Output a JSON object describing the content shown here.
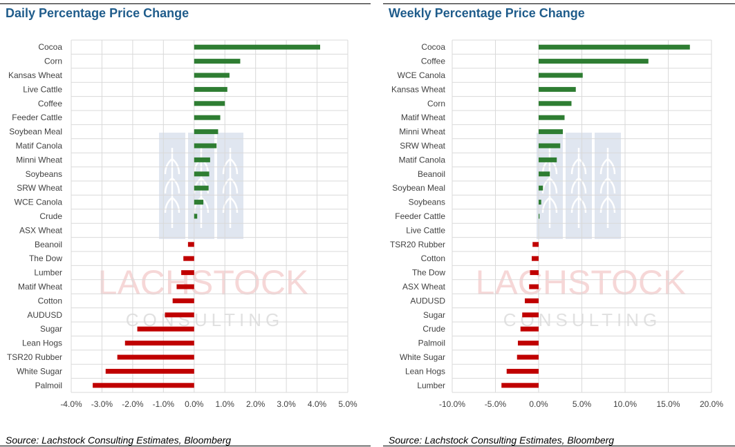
{
  "chart_data": [
    {
      "type": "bar",
      "orientation": "horizontal",
      "title": "Daily Percentage Price Change",
      "categories": [
        "Cocoa",
        "Corn",
        "Kansas Wheat",
        "Live Cattle",
        "Coffee",
        "Feeder Cattle",
        "Soybean Meal",
        "Matif Canola",
        "Minni Wheat",
        "Soybeans",
        "SRW Wheat",
        "WCE Canola",
        "Crude",
        "ASX Wheat",
        "Beanoil",
        "The Dow",
        "Lumber",
        "Matif Wheat",
        "Cotton",
        "AUDUSD",
        "Sugar",
        "Lean Hogs",
        "TSR20 Rubber",
        "White Sugar",
        "Palmoil"
      ],
      "values": [
        4.1,
        1.5,
        1.15,
        1.08,
        1.0,
        0.85,
        0.78,
        0.73,
        0.52,
        0.49,
        0.47,
        0.3,
        0.1,
        0.0,
        -0.2,
        -0.35,
        -0.42,
        -0.57,
        -0.7,
        -0.95,
        -1.85,
        -2.25,
        -2.5,
        -2.88,
        -3.3
      ],
      "xlim": [
        -4.0,
        5.0
      ],
      "xticks": [
        "-4.0%",
        "-3.0%",
        "-2.0%",
        "-1.0%",
        "0.0%",
        "1.0%",
        "2.0%",
        "3.0%",
        "4.0%",
        "5.0%"
      ],
      "grid": true,
      "colors": {
        "positive": "#2e7d32",
        "negative": "#c00000"
      },
      "source": "Source: Lachstock Consulting Estimates, Bloomberg"
    },
    {
      "type": "bar",
      "orientation": "horizontal",
      "title": "Weekly Percentage Price Change",
      "categories": [
        "Cocoa",
        "Coffee",
        "WCE Canola",
        "Kansas Wheat",
        "Corn",
        "Matif Wheat",
        "Minni Wheat",
        "SRW Wheat",
        "Matif Canola",
        "Beanoil",
        "Soybean Meal",
        "Soybeans",
        "Feeder Cattle",
        "Live Cattle",
        "TSR20 Rubber",
        "Cotton",
        "The Dow",
        "ASX Wheat",
        "AUDUSD",
        "Sugar",
        "Crude",
        "Palmoil",
        "White Sugar",
        "Lean Hogs",
        "Lumber"
      ],
      "values": [
        17.5,
        12.7,
        5.1,
        4.3,
        3.8,
        3.0,
        2.8,
        2.5,
        2.1,
        1.3,
        0.5,
        0.3,
        0.1,
        0.0,
        -0.7,
        -0.8,
        -1.0,
        -1.1,
        -1.6,
        -1.9,
        -2.1,
        -2.4,
        -2.5,
        -3.7,
        -4.3
      ],
      "xlim": [
        -10.0,
        20.0
      ],
      "xticks": [
        "-10.0%",
        "-5.0%",
        "0.0%",
        "5.0%",
        "10.0%",
        "15.0%",
        "20.0%"
      ],
      "grid": true,
      "colors": {
        "positive": "#2e7d32",
        "negative": "#c00000"
      },
      "source": "Source: Lachstock Consulting Estimates, Bloomberg"
    }
  ],
  "watermark": {
    "line1": "LACHSTOCK",
    "line2": "CONSULTING"
  }
}
